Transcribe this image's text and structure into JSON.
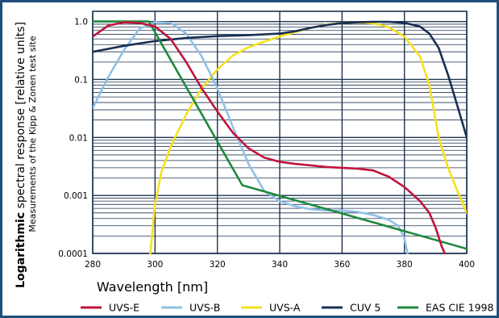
{
  "chart_data": {
    "type": "line",
    "yscale": "log",
    "xlabel": "Wavelength [nm]",
    "ylabel_bold": "Logarithmic",
    "ylabel_rest": " spectral response [relative units]",
    "ylabel_sub": "Measurements of the Kipp & Zonen test site",
    "xlim": [
      280,
      400
    ],
    "ylim": [
      0.0001,
      1.5
    ],
    "x_ticks": [
      280,
      300,
      320,
      340,
      360,
      380,
      400
    ],
    "x_tick_labels": [
      "280",
      "300",
      "320",
      "340",
      "360",
      "380",
      "400"
    ],
    "y_ticks": [
      1,
      0.1,
      0.01,
      0.001,
      0.0001
    ],
    "y_tick_labels": [
      "1.0",
      "0.1",
      "0.01",
      "0.001",
      "0.0001"
    ],
    "grid": true,
    "legend_position": "bottom",
    "series": [
      {
        "name": "UVS-E",
        "color": "#c0143c",
        "points": [
          [
            280,
            0.55
          ],
          [
            285,
            0.85
          ],
          [
            290,
            0.97
          ],
          [
            295,
            0.95
          ],
          [
            300,
            0.82
          ],
          [
            305,
            0.5
          ],
          [
            310,
            0.2
          ],
          [
            315,
            0.07
          ],
          [
            320,
            0.028
          ],
          [
            325,
            0.012
          ],
          [
            330,
            0.0065
          ],
          [
            335,
            0.0045
          ],
          [
            340,
            0.0038
          ],
          [
            345,
            0.0035
          ],
          [
            350,
            0.0033
          ],
          [
            355,
            0.0031
          ],
          [
            360,
            0.003
          ],
          [
            365,
            0.0029
          ],
          [
            370,
            0.0027
          ],
          [
            375,
            0.0021
          ],
          [
            380,
            0.0014
          ],
          [
            385,
            0.0008
          ],
          [
            388,
            0.0005
          ],
          [
            390,
            0.00028
          ],
          [
            392,
            0.00013
          ],
          [
            393,
            0.0001
          ]
        ]
      },
      {
        "name": "UVS-B",
        "color": "#8fc1e6",
        "points": [
          [
            280,
            0.032
          ],
          [
            285,
            0.11
          ],
          [
            290,
            0.32
          ],
          [
            295,
            0.75
          ],
          [
            300,
            0.98
          ],
          [
            305,
            0.95
          ],
          [
            310,
            0.62
          ],
          [
            315,
            0.25
          ],
          [
            320,
            0.07
          ],
          [
            325,
            0.015
          ],
          [
            330,
            0.0035
          ],
          [
            335,
            0.0012
          ],
          [
            340,
            0.0008
          ],
          [
            345,
            0.00065
          ],
          [
            350,
            0.00058
          ],
          [
            355,
            0.00055
          ],
          [
            360,
            0.00055
          ],
          [
            365,
            0.00052
          ],
          [
            370,
            0.00046
          ],
          [
            375,
            0.00038
          ],
          [
            378,
            0.0003
          ],
          [
            380,
            0.00018
          ],
          [
            381,
            0.0001
          ]
        ]
      },
      {
        "name": "UVS-A",
        "color": "#f5e11e",
        "points": [
          [
            298.5,
            0.0001
          ],
          [
            300,
            0.0007
          ],
          [
            302,
            0.0025
          ],
          [
            305,
            0.007
          ],
          [
            310,
            0.025
          ],
          [
            315,
            0.07
          ],
          [
            320,
            0.15
          ],
          [
            325,
            0.26
          ],
          [
            330,
            0.36
          ],
          [
            335,
            0.45
          ],
          [
            340,
            0.55
          ],
          [
            345,
            0.66
          ],
          [
            350,
            0.78
          ],
          [
            355,
            0.88
          ],
          [
            360,
            0.95
          ],
          [
            365,
            0.97
          ],
          [
            370,
            0.93
          ],
          [
            375,
            0.8
          ],
          [
            380,
            0.55
          ],
          [
            385,
            0.25
          ],
          [
            388,
            0.08
          ],
          [
            391,
            0.01
          ],
          [
            394,
            0.003
          ],
          [
            397,
            0.0012
          ],
          [
            400,
            0.0005
          ]
        ]
      },
      {
        "name": "CUV 5",
        "color": "#1a2f55",
        "points": [
          [
            280,
            0.3
          ],
          [
            290,
            0.38
          ],
          [
            300,
            0.46
          ],
          [
            310,
            0.52
          ],
          [
            320,
            0.56
          ],
          [
            330,
            0.58
          ],
          [
            340,
            0.62
          ],
          [
            345,
            0.68
          ],
          [
            350,
            0.78
          ],
          [
            355,
            0.87
          ],
          [
            360,
            0.94
          ],
          [
            365,
            0.97
          ],
          [
            370,
            0.99
          ],
          [
            375,
            0.99
          ],
          [
            380,
            0.95
          ],
          [
            385,
            0.82
          ],
          [
            388,
            0.62
          ],
          [
            391,
            0.35
          ],
          [
            394,
            0.12
          ],
          [
            397,
            0.035
          ],
          [
            400,
            0.01
          ]
        ]
      },
      {
        "name": "EAS CIE 1998",
        "color": "#1e8a3c",
        "points": [
          [
            280,
            1.0
          ],
          [
            298,
            1.0
          ],
          [
            328,
            0.0015
          ],
          [
            400,
            0.00012
          ]
        ]
      }
    ]
  }
}
